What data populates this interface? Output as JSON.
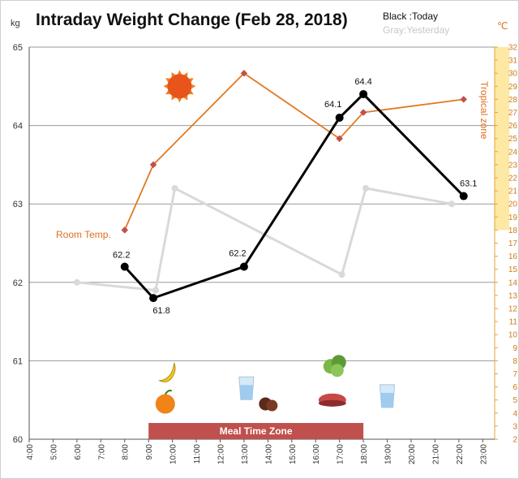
{
  "chart_data": {
    "type": "line",
    "title": "Intraday Weight Change (Feb 28, 2018)",
    "ylabel_left": "kg",
    "ylabel_right": "℃",
    "legend": {
      "today": "Black :Today",
      "yesterday": "Gray:Yesterday"
    },
    "x_ticks": [
      "4:00",
      "5:00",
      "6:00",
      "7:00",
      "8:00",
      "9:00",
      "10:00",
      "11:00",
      "12:00",
      "13:00",
      "14:00",
      "15:00",
      "16:00",
      "17:00",
      "18:00",
      "19:00",
      "20:00",
      "21:00",
      "22:00",
      "23:00"
    ],
    "xlim": [
      4,
      23.5
    ],
    "ylim": [
      60,
      65
    ],
    "y_ticks": [
      60,
      61,
      62,
      63,
      64,
      65
    ],
    "y2lim": [
      2,
      32
    ],
    "y2_ticks": [
      2,
      3,
      4,
      5,
      6,
      7,
      8,
      9,
      10,
      11,
      12,
      13,
      14,
      15,
      16,
      17,
      18,
      19,
      20,
      21,
      22,
      23,
      24,
      25,
      26,
      27,
      28,
      29,
      30,
      31,
      32
    ],
    "grid": true,
    "series": [
      {
        "key": "today",
        "color": "#000000",
        "x": [
          8.0,
          9.2,
          13.0,
          17.0,
          18.0,
          22.2
        ],
        "values": [
          62.2,
          61.8,
          62.2,
          64.1,
          64.4,
          63.1
        ],
        "labels": [
          "62.2",
          "61.8",
          "62.2",
          "64.1",
          "64.4",
          "63.1"
        ]
      },
      {
        "key": "yesterday",
        "color": "#d9d9d9",
        "x": [
          6.0,
          9.3,
          10.1,
          17.1,
          18.1,
          21.7
        ],
        "values": [
          62.0,
          61.9,
          63.2,
          62.1,
          63.2,
          63.0
        ]
      },
      {
        "key": "room_temp",
        "name": "Room Temp.",
        "axis": "right",
        "color": "#e07a20",
        "marker_color": "#c0504d",
        "x": [
          8.0,
          9.2,
          13.0,
          17.0,
          18.0,
          22.2
        ],
        "values": [
          18,
          23,
          30,
          25,
          27,
          28
        ]
      }
    ],
    "right_zone": {
      "label": "Tropical zone",
      "from": 18,
      "to": 32,
      "color": "#fde8a4"
    },
    "meal_zone": {
      "label": "Meal Time Zone",
      "from": 9.0,
      "to": 18.0,
      "color": "#c0504d"
    },
    "icons": [
      {
        "name": "sun-icon",
        "x": 10.3,
        "y": 64.5
      },
      {
        "name": "banana-icon",
        "x": 9.8,
        "y": 60.85
      },
      {
        "name": "orange-icon",
        "x": 9.7,
        "y": 60.45
      },
      {
        "name": "water-glass-icon",
        "x": 13.1,
        "y": 60.65
      },
      {
        "name": "dates-icon",
        "x": 14.0,
        "y": 60.45
      },
      {
        "name": "lettuce-icon",
        "x": 16.8,
        "y": 60.95
      },
      {
        "name": "steak-icon",
        "x": 16.7,
        "y": 60.5
      },
      {
        "name": "water-glass-icon",
        "x": 19.0,
        "y": 60.55
      }
    ]
  }
}
